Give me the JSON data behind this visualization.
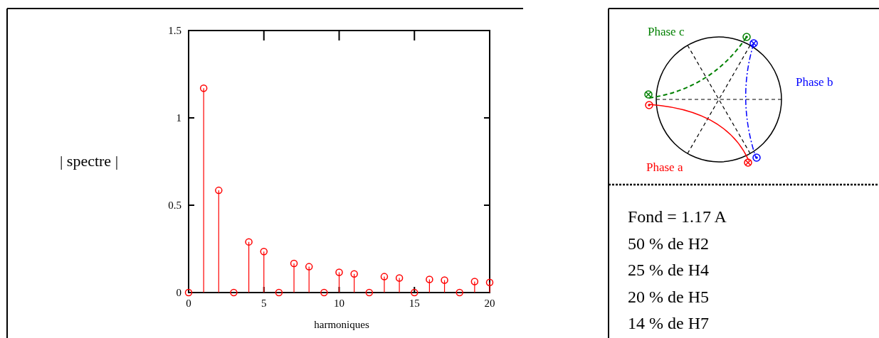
{
  "chart_data": [
    {
      "type": "lollipop",
      "xlabel": "harmoniques",
      "ylabel": "| spectre |",
      "color": "#ff0000",
      "marker": "circle",
      "x": [
        0,
        1,
        2,
        3,
        4,
        5,
        6,
        7,
        8,
        9,
        10,
        11,
        12,
        13,
        14,
        15,
        16,
        17,
        18,
        19,
        20
      ],
      "values": [
        0,
        1.17,
        0.585,
        0,
        0.29,
        0.235,
        0,
        0.167,
        0.148,
        0,
        0.116,
        0.107,
        0,
        0.091,
        0.083,
        0,
        0.075,
        0.071,
        0,
        0.063,
        0.058
      ],
      "xlim": [
        0,
        20
      ],
      "ylim": [
        0,
        1.5
      ],
      "xticks": [
        0,
        5,
        10,
        15,
        20
      ],
      "yticks": [
        0,
        0.5,
        1,
        1.5
      ]
    },
    {
      "type": "other",
      "annotations": [
        "Phase c",
        "Phase b",
        "Phase a"
      ]
    },
    {
      "type": "other",
      "annotations": [
        "Fond = 1.17 A",
        "50 % de H2",
        "25 % de H4",
        "20 % de H5",
        "14 % de H7"
      ]
    }
  ]
}
